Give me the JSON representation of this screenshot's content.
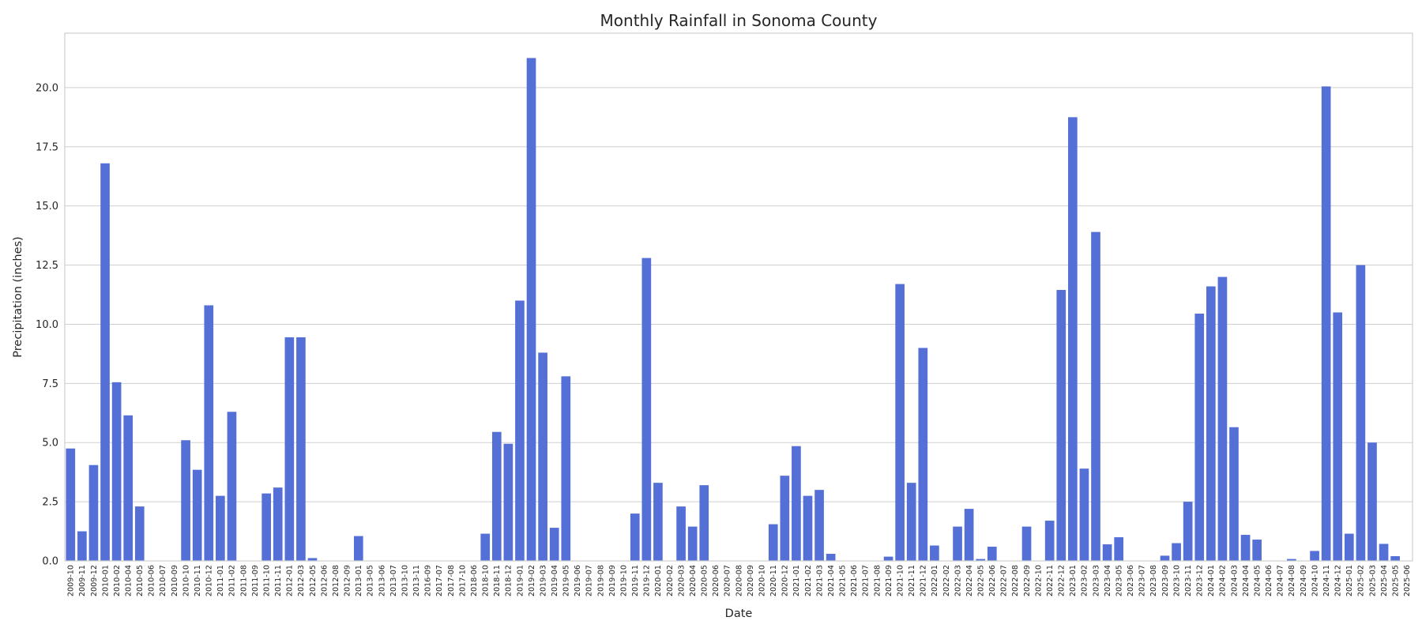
{
  "chart_data": {
    "type": "bar",
    "title": "Monthly Rainfall in Sonoma County",
    "xlabel": "Date",
    "ylabel": "Precipitation (inches)",
    "ylim": [
      0,
      22.3
    ],
    "yticks": [
      "0.0",
      "2.5",
      "5.0",
      "7.5",
      "10.0",
      "12.5",
      "15.0",
      "17.5",
      "20.0"
    ],
    "grid": true,
    "bar_color": "#5470d6",
    "categories": [
      "2009-10",
      "2009-11",
      "2009-12",
      "2010-01",
      "2010-02",
      "2010-04",
      "2010-05",
      "2010-06",
      "2010-07",
      "2010-09",
      "2010-10",
      "2010-11",
      "2010-12",
      "2011-01",
      "2011-02",
      "2011-08",
      "2011-09",
      "2011-10",
      "2011-11",
      "2012-01",
      "2012-03",
      "2012-05",
      "2012-06",
      "2012-08",
      "2012-09",
      "2013-01",
      "2013-05",
      "2013-06",
      "2013-07",
      "2013-10",
      "2013-11",
      "2016-09",
      "2017-07",
      "2017-08",
      "2017-10",
      "2018-06",
      "2018-10",
      "2018-11",
      "2018-12",
      "2019-01",
      "2019-02",
      "2019-03",
      "2019-04",
      "2019-05",
      "2019-06",
      "2019-07",
      "2019-08",
      "2019-09",
      "2019-10",
      "2019-11",
      "2019-12",
      "2020-01",
      "2020-02",
      "2020-03",
      "2020-04",
      "2020-05",
      "2020-06",
      "2020-07",
      "2020-08",
      "2020-09",
      "2020-10",
      "2020-11",
      "2020-12",
      "2021-01",
      "2021-02",
      "2021-03",
      "2021-04",
      "2021-05",
      "2021-06",
      "2021-07",
      "2021-08",
      "2021-09",
      "2021-10",
      "2021-11",
      "2021-12",
      "2022-01",
      "2022-02",
      "2022-03",
      "2022-04",
      "2022-05",
      "2022-06",
      "2022-07",
      "2022-08",
      "2022-09",
      "2022-10",
      "2022-11",
      "2022-12",
      "2023-01",
      "2023-02",
      "2023-03",
      "2023-04",
      "2023-05",
      "2023-06",
      "2023-07",
      "2023-08",
      "2023-09",
      "2023-10",
      "2023-11",
      "2023-12",
      "2024-01",
      "2024-02",
      "2024-03",
      "2024-04",
      "2024-05",
      "2024-06",
      "2024-07",
      "2024-08",
      "2024-09",
      "2024-10",
      "2024-11",
      "2024-12",
      "2025-01",
      "2025-02",
      "2025-03",
      "2025-04",
      "2025-05",
      "2025-06"
    ],
    "values": [
      4.75,
      1.25,
      4.05,
      16.8,
      7.55,
      6.15,
      2.3,
      0,
      0,
      0,
      5.1,
      3.85,
      10.8,
      2.75,
      6.3,
      0,
      0,
      2.85,
      3.1,
      9.45,
      9.45,
      0.12,
      0,
      0,
      0,
      1.05,
      0,
      0,
      0,
      0,
      0,
      0,
      0,
      0,
      0,
      0,
      1.15,
      5.45,
      4.95,
      11.0,
      21.25,
      8.8,
      1.4,
      7.8,
      0,
      0,
      0,
      0,
      0,
      2.0,
      12.8,
      3.3,
      0,
      2.3,
      1.45,
      3.2,
      0,
      0,
      0,
      0,
      0,
      1.55,
      3.6,
      4.85,
      2.75,
      3.0,
      0.3,
      0,
      0,
      0,
      0,
      0.18,
      11.7,
      3.3,
      9.0,
      0.65,
      0,
      1.45,
      2.2,
      0.08,
      0.6,
      0,
      0,
      1.45,
      0,
      1.7,
      11.45,
      18.75,
      3.9,
      13.9,
      0.7,
      1.0,
      0,
      0,
      0,
      0.22,
      0.75,
      2.5,
      10.45,
      11.6,
      12.0,
      5.65,
      1.1,
      0.9,
      0,
      0,
      0.08,
      0,
      0.42,
      20.05,
      10.5,
      1.15,
      12.5,
      5.0,
      0.72,
      0.2,
      0
    ]
  }
}
